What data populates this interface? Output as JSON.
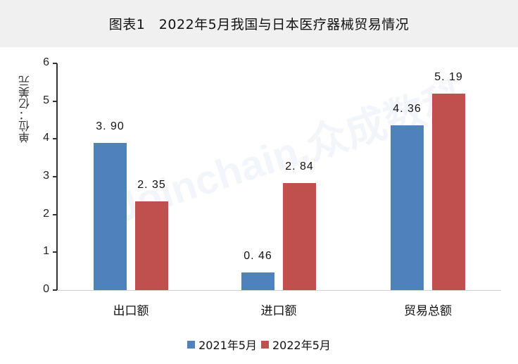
{
  "title": "图表1　2022年5月我国与日本医疗器械贸易情况",
  "watermark": "Joinchain.众成数科",
  "chart_data": {
    "type": "bar",
    "title": "图表1　2022年5月我国与日本医疗器械贸易情况",
    "xlabel": "",
    "ylabel": "单位：亿美元",
    "ylim": [
      0,
      6
    ],
    "yticks": [
      0,
      1,
      2,
      3,
      4,
      5,
      6
    ],
    "grid": false,
    "legend_position": "bottom",
    "categories": [
      "出口额",
      "进口额",
      "贸易总额"
    ],
    "series": [
      {
        "name": "2021年5月",
        "color": "#4f81bd",
        "values": [
          3.9,
          0.46,
          4.36
        ],
        "labels": [
          "3. 90",
          "0. 46",
          "4. 36"
        ]
      },
      {
        "name": "2022年5月",
        "color": "#c0504d",
        "values": [
          2.35,
          2.84,
          5.19
        ],
        "labels": [
          "2. 35",
          "2. 84",
          "5. 19"
        ]
      }
    ]
  }
}
